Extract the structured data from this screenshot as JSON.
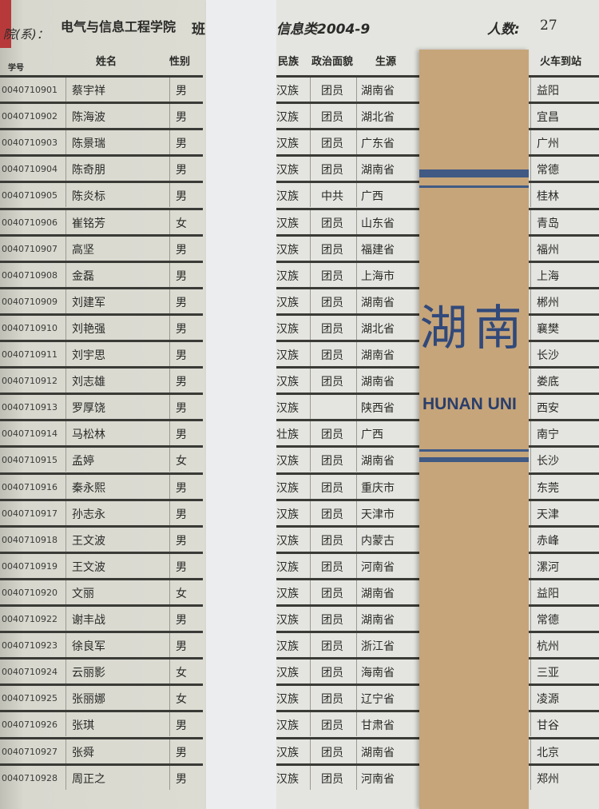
{
  "header": {
    "dept_label": "院(系)：",
    "dept": "电气与信息工程学院",
    "class_label": "班",
    "class_name": "信息类2004-9",
    "count_label": "人数:",
    "count": "27"
  },
  "columns": {
    "id": "学号",
    "name": "姓名",
    "gender": "性别",
    "ethnicity": "民族",
    "politics": "政治面貌",
    "origin": "生源",
    "station": "火车到站"
  },
  "bookmark": {
    "text_cn": "湖南",
    "text_en": "HUNAN UNI",
    "color": "#c6a57a",
    "band_color": "#405a84"
  },
  "rows": [
    {
      "id": "0040710901",
      "name": "蔡宇祥",
      "gender": "男",
      "ethnicity": "汉族",
      "politics": "团员",
      "origin": "湖南省",
      "station": "益阳"
    },
    {
      "id": "0040710902",
      "name": "陈海波",
      "gender": "男",
      "ethnicity": "汉族",
      "politics": "团员",
      "origin": "湖北省",
      "station": "宜昌"
    },
    {
      "id": "0040710903",
      "name": "陈景瑞",
      "gender": "男",
      "ethnicity": "汉族",
      "politics": "团员",
      "origin": "广东省",
      "station": "广州"
    },
    {
      "id": "0040710904",
      "name": "陈奇朋",
      "gender": "男",
      "ethnicity": "汉族",
      "politics": "团员",
      "origin": "湖南省",
      "station": "常德"
    },
    {
      "id": "0040710905",
      "name": "陈炎标",
      "gender": "男",
      "ethnicity": "汉族",
      "politics": "中共",
      "origin": "广西",
      "station": "桂林"
    },
    {
      "id": "0040710906",
      "name": "崔铭芳",
      "gender": "女",
      "ethnicity": "汉族",
      "politics": "团员",
      "origin": "山东省",
      "station": "青岛"
    },
    {
      "id": "0040710907",
      "name": "高坚",
      "gender": "男",
      "ethnicity": "汉族",
      "politics": "团员",
      "origin": "福建省",
      "station": "福州"
    },
    {
      "id": "0040710908",
      "name": "金磊",
      "gender": "男",
      "ethnicity": "汉族",
      "politics": "团员",
      "origin": "上海市",
      "station": "上海"
    },
    {
      "id": "0040710909",
      "name": "刘建军",
      "gender": "男",
      "ethnicity": "汉族",
      "politics": "团员",
      "origin": "湖南省",
      "station": "郴州"
    },
    {
      "id": "0040710910",
      "name": "刘艳强",
      "gender": "男",
      "ethnicity": "汉族",
      "politics": "团员",
      "origin": "湖北省",
      "station": "襄樊"
    },
    {
      "id": "0040710911",
      "name": "刘宇思",
      "gender": "男",
      "ethnicity": "汉族",
      "politics": "团员",
      "origin": "湖南省",
      "station": "长沙"
    },
    {
      "id": "0040710912",
      "name": "刘志雄",
      "gender": "男",
      "ethnicity": "汉族",
      "politics": "团员",
      "origin": "湖南省",
      "station": "娄底"
    },
    {
      "id": "0040710913",
      "name": "罗厚饶",
      "gender": "男",
      "ethnicity": "汉族",
      "politics": "",
      "origin": "陕西省",
      "station": "西安"
    },
    {
      "id": "0040710914",
      "name": "马松林",
      "gender": "男",
      "ethnicity": "壮族",
      "politics": "团员",
      "origin": "广西",
      "station": "南宁"
    },
    {
      "id": "0040710915",
      "name": "孟婷",
      "gender": "女",
      "ethnicity": "汉族",
      "politics": "团员",
      "origin": "湖南省",
      "station": "长沙"
    },
    {
      "id": "0040710916",
      "name": "秦永熙",
      "gender": "男",
      "ethnicity": "汉族",
      "politics": "团员",
      "origin": "重庆市",
      "station": "东莞"
    },
    {
      "id": "0040710917",
      "name": "孙志永",
      "gender": "男",
      "ethnicity": "汉族",
      "politics": "团员",
      "origin": "天津市",
      "station": "天津"
    },
    {
      "id": "0040710918",
      "name": "王文波",
      "gender": "男",
      "ethnicity": "汉族",
      "politics": "团员",
      "origin": "内蒙古",
      "station": "赤峰"
    },
    {
      "id": "0040710919",
      "name": "王文波",
      "gender": "男",
      "ethnicity": "汉族",
      "politics": "团员",
      "origin": "河南省",
      "station": "漯河"
    },
    {
      "id": "0040710920",
      "name": "文丽",
      "gender": "女",
      "ethnicity": "汉族",
      "politics": "团员",
      "origin": "湖南省",
      "station": "益阳"
    },
    {
      "id": "0040710922",
      "name": "谢丰战",
      "gender": "男",
      "ethnicity": "汉族",
      "politics": "团员",
      "origin": "湖南省",
      "station": "常德"
    },
    {
      "id": "0040710923",
      "name": "徐良军",
      "gender": "男",
      "ethnicity": "汉族",
      "politics": "团员",
      "origin": "浙江省",
      "station": "杭州"
    },
    {
      "id": "0040710924",
      "name": "云丽影",
      "gender": "女",
      "ethnicity": "汉族",
      "politics": "团员",
      "origin": "海南省",
      "station": "三亚"
    },
    {
      "id": "0040710925",
      "name": "张丽娜",
      "gender": "女",
      "ethnicity": "汉族",
      "politics": "团员",
      "origin": "辽宁省",
      "station": "凌源"
    },
    {
      "id": "0040710926",
      "name": "张琪",
      "gender": "男",
      "ethnicity": "汉族",
      "politics": "团员",
      "origin": "甘肃省",
      "station": "甘谷"
    },
    {
      "id": "0040710927",
      "name": "张舜",
      "gender": "男",
      "ethnicity": "汉族",
      "politics": "团员",
      "origin": "湖南省",
      "station": "北京"
    },
    {
      "id": "0040710928",
      "name": "周正之",
      "gender": "男",
      "ethnicity": "汉族",
      "politics": "团员",
      "origin": "河南省",
      "station": "郑州"
    }
  ]
}
